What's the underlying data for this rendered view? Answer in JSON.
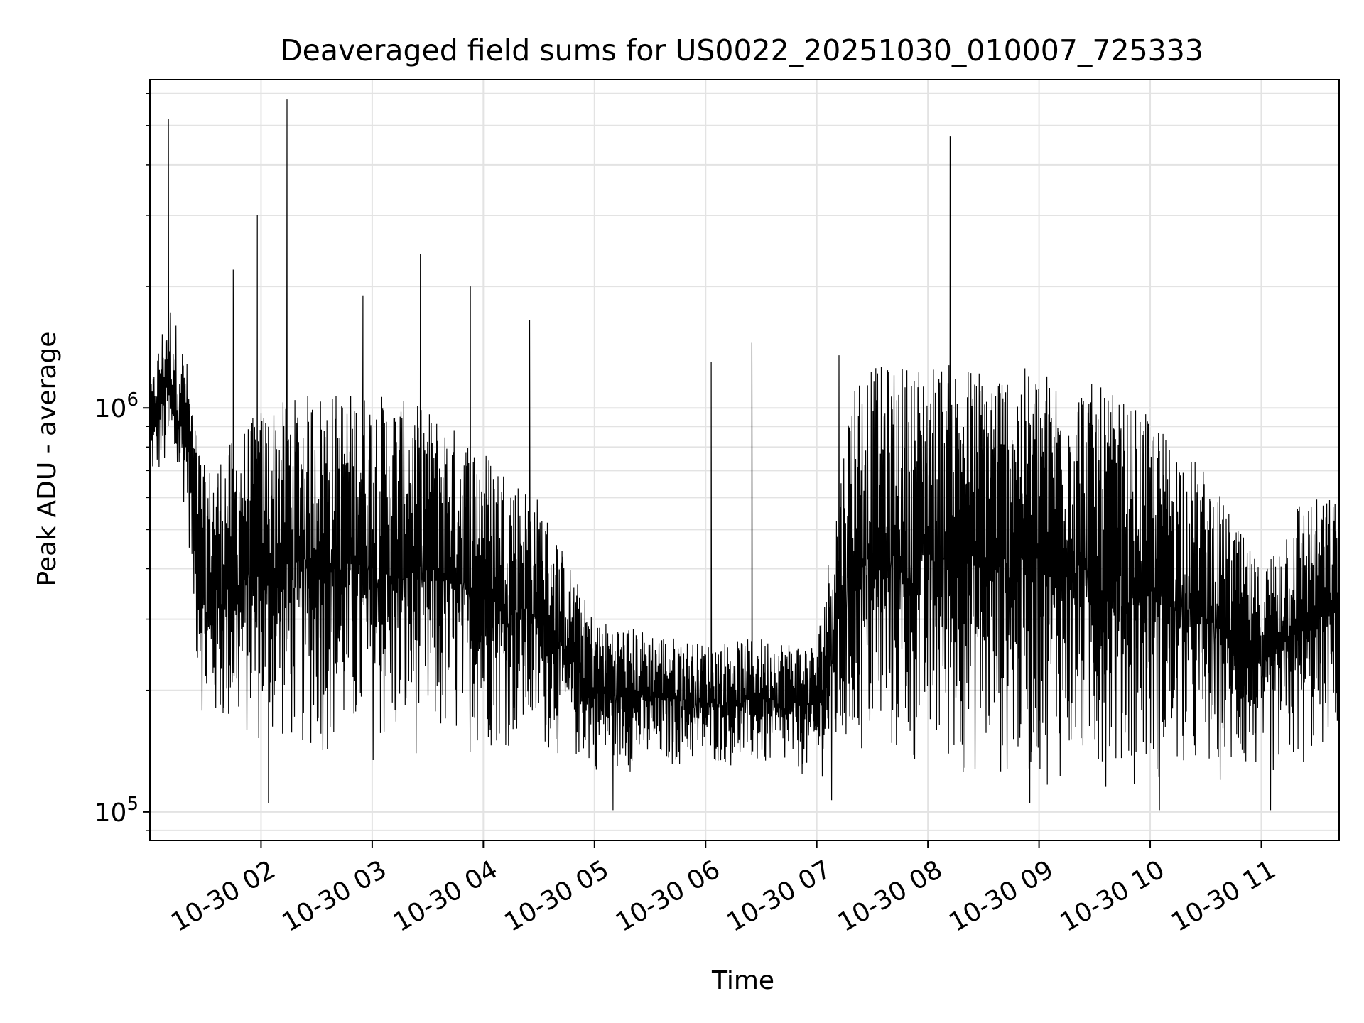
{
  "chart_data": {
    "type": "line",
    "title": "Deaveraged field sums for US0022_20251030_010007_725333",
    "xlabel": "Time",
    "ylabel": "Peak ADU - average",
    "x_axis": {
      "kind": "datetime",
      "range": [
        "2025-10-30 01:00",
        "2025-10-30 11:42"
      ],
      "tick_labels": [
        "10-30 02",
        "10-30 03",
        "10-30 04",
        "10-30 05",
        "10-30 06",
        "10-30 07",
        "10-30 08",
        "10-30 09",
        "10-30 10",
        "10-30 11"
      ]
    },
    "y_axis": {
      "scale": "log",
      "ylim": [
        85000,
        6500000
      ],
      "major_ticks": [
        {
          "base": "10",
          "exp": "5"
        },
        {
          "base": "10",
          "exp": "6"
        }
      ]
    },
    "grid": true,
    "series": [
      {
        "color": "#000000",
        "envelope": [
          {
            "t": "2025-10-30 01:00",
            "low": 650000,
            "high": 1100000
          },
          {
            "t": "2025-10-30 01:10",
            "low": 650000,
            "high": 1900000
          },
          {
            "t": "2025-10-30 01:20",
            "low": 550000,
            "high": 1300000
          },
          {
            "t": "2025-10-30 01:25",
            "low": 220000,
            "high": 900000
          },
          {
            "t": "2025-10-30 01:30",
            "low": 150000,
            "high": 700000
          },
          {
            "t": "2025-10-30 02:00",
            "low": 140000,
            "high": 1000000
          },
          {
            "t": "2025-10-30 02:30",
            "low": 135000,
            "high": 1100000
          },
          {
            "t": "2025-10-30 03:00",
            "low": 130000,
            "high": 1100000
          },
          {
            "t": "2025-10-30 03:30",
            "low": 135000,
            "high": 1000000
          },
          {
            "t": "2025-10-30 04:00",
            "low": 140000,
            "high": 800000
          },
          {
            "t": "2025-10-30 04:30",
            "low": 140000,
            "high": 600000
          },
          {
            "t": "2025-10-30 05:00",
            "low": 125000,
            "high": 300000
          },
          {
            "t": "2025-10-30 05:30",
            "low": 125000,
            "high": 280000
          },
          {
            "t": "2025-10-30 06:00",
            "low": 130000,
            "high": 260000
          },
          {
            "t": "2025-10-30 06:30",
            "low": 125000,
            "high": 270000
          },
          {
            "t": "2025-10-30 07:00",
            "low": 120000,
            "high": 260000
          },
          {
            "t": "2025-10-30 07:20",
            "low": 125000,
            "high": 1250000
          },
          {
            "t": "2025-10-30 08:00",
            "low": 120000,
            "high": 1300000
          },
          {
            "t": "2025-10-30 09:00",
            "low": 115000,
            "high": 1250000
          },
          {
            "t": "2025-10-30 09:30",
            "low": 115000,
            "high": 1150000
          },
          {
            "t": "2025-10-30 10:00",
            "low": 115000,
            "high": 950000
          },
          {
            "t": "2025-10-30 10:30",
            "low": 115000,
            "high": 700000
          },
          {
            "t": "2025-10-30 11:00",
            "low": 120000,
            "high": 400000
          },
          {
            "t": "2025-10-30 11:20",
            "low": 120000,
            "high": 600000
          },
          {
            "t": "2025-10-30 11:42",
            "low": 150000,
            "high": 600000
          }
        ],
        "spikes": [
          {
            "t": "2025-10-30 01:10",
            "value": 5200000
          },
          {
            "t": "2025-10-30 01:45",
            "value": 2200000
          },
          {
            "t": "2025-10-30 01:58",
            "value": 3000000
          },
          {
            "t": "2025-10-30 02:14",
            "value": 5800000
          },
          {
            "t": "2025-10-30 02:55",
            "value": 1900000
          },
          {
            "t": "2025-10-30 03:26",
            "value": 2400000
          },
          {
            "t": "2025-10-30 03:53",
            "value": 2000000
          },
          {
            "t": "2025-10-30 04:25",
            "value": 1650000
          },
          {
            "t": "2025-10-30 06:03",
            "value": 1300000
          },
          {
            "t": "2025-10-30 06:25",
            "value": 1450000
          },
          {
            "t": "2025-10-30 07:12",
            "value": 1350000
          },
          {
            "t": "2025-10-30 08:12",
            "value": 4700000
          }
        ],
        "dips": [
          {
            "t": "2025-10-30 02:04",
            "value": 105000
          },
          {
            "t": "2025-10-30 05:10",
            "value": 101000
          },
          {
            "t": "2025-10-30 07:08",
            "value": 107000
          },
          {
            "t": "2025-10-30 08:55",
            "value": 105000
          },
          {
            "t": "2025-10-30 10:05",
            "value": 101000
          },
          {
            "t": "2025-10-30 11:05",
            "value": 101000
          }
        ]
      }
    ]
  }
}
